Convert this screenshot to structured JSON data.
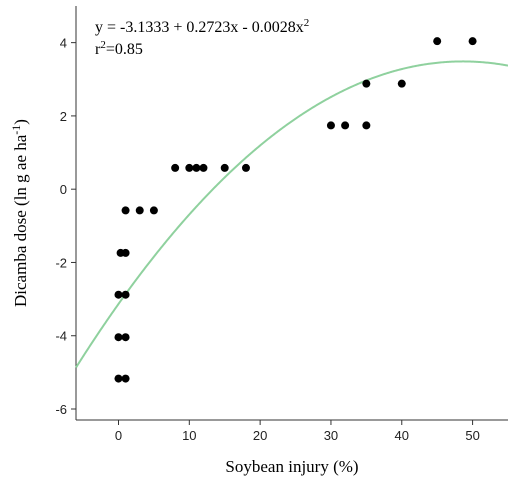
{
  "chart_data": {
    "type": "scatter",
    "xlabel": "Soybean injury (%)",
    "ylabel_main": "Dicamba dose (ln g ae ha",
    "ylabel_sup": "-1",
    "ylabel_close": ")",
    "equation": {
      "main": "y = -3.1333 + 0.2723x - 0.0028x",
      "sup": "2"
    },
    "r2": {
      "prefix": "r",
      "sup": "2",
      "value": "=0.85"
    },
    "xlim": [
      -6,
      55
    ],
    "ylim": [
      -6.3,
      5.0
    ],
    "xticks": [
      0,
      10,
      20,
      30,
      40,
      50
    ],
    "yticks": [
      -6,
      -4,
      -2,
      0,
      2,
      4
    ],
    "fit": {
      "a": -3.1333,
      "b": 0.2723,
      "c": -0.0028,
      "color": "#8fd19e"
    },
    "point_color": "#000000",
    "points": [
      {
        "x": 0,
        "y": -5.17
      },
      {
        "x": 1,
        "y": -5.17
      },
      {
        "x": 0,
        "y": -4.04
      },
      {
        "x": 1,
        "y": -4.04
      },
      {
        "x": 0,
        "y": -2.88
      },
      {
        "x": 1,
        "y": -2.88
      },
      {
        "x": 0.3,
        "y": -1.74
      },
      {
        "x": 1,
        "y": -1.74
      },
      {
        "x": 1,
        "y": -0.58
      },
      {
        "x": 3,
        "y": -0.58
      },
      {
        "x": 5,
        "y": -0.58
      },
      {
        "x": 8,
        "y": 0.58
      },
      {
        "x": 10,
        "y": 0.58
      },
      {
        "x": 11,
        "y": 0.58
      },
      {
        "x": 12,
        "y": 0.58
      },
      {
        "x": 15,
        "y": 0.58
      },
      {
        "x": 18,
        "y": 0.58
      },
      {
        "x": 30,
        "y": 1.74
      },
      {
        "x": 32,
        "y": 1.74
      },
      {
        "x": 35,
        "y": 1.74
      },
      {
        "x": 35,
        "y": 2.88
      },
      {
        "x": 40,
        "y": 2.88
      },
      {
        "x": 45,
        "y": 4.04
      },
      {
        "x": 50,
        "y": 4.04
      }
    ]
  }
}
